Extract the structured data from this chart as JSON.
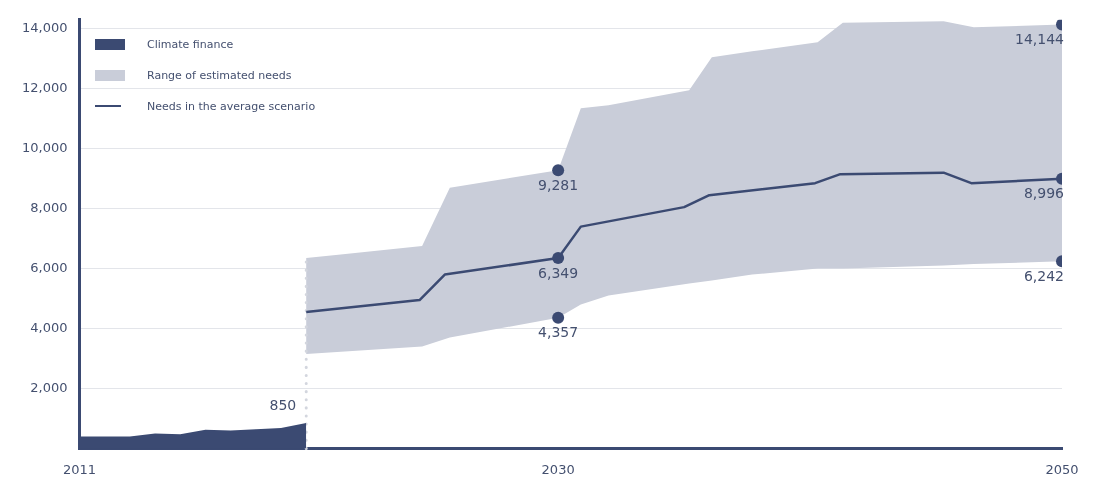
{
  "chart_data": {
    "type": "area",
    "xlim": [
      2011,
      2050
    ],
    "xticks": [
      2011,
      2030,
      2050
    ],
    "ylim": [
      0,
      14300
    ],
    "yticks": [
      {
        "value": 2000,
        "label": "2,000"
      },
      {
        "value": 4000,
        "label": "4,000"
      },
      {
        "value": 6000,
        "label": "6,000"
      },
      {
        "value": 8000,
        "label": "8,000"
      },
      {
        "value": 10000,
        "label": "10,000"
      },
      {
        "value": 12000,
        "label": "12,000"
      },
      {
        "value": 14000,
        "label": "14,000"
      }
    ],
    "grid": "y",
    "legend": "top left",
    "series": [
      {
        "name": "Climate finance",
        "color": "#3b4a72",
        "x": [
          2011,
          2012,
          2013,
          2014,
          2015,
          2016,
          2017,
          2018,
          2019,
          2020
        ],
        "values": [
          400,
          400,
          400,
          500,
          470,
          620,
          600,
          640,
          680,
          850
        ]
      },
      {
        "name": "Range of estimated needs",
        "color": "#c9cdd9",
        "values": [
          null,
          null,
          null,
          null,
          null,
          null,
          null,
          null,
          null,
          null,
          null,
          null,
          null,
          null
        ],
        "x": [
          2020,
          2024.6,
          2025.7,
          2030,
          2030.9,
          2032,
          2035.2,
          2036.1,
          2037.7,
          2040.3,
          2041.3,
          2045.3,
          2046.5,
          2050
        ],
        "lower": [
          3150,
          3400,
          3700,
          4357,
          4800,
          5100,
          5500,
          5600,
          5800,
          6000,
          6000,
          6100,
          6150,
          6242
        ],
        "upper": [
          6350,
          6750,
          8700,
          9281,
          11350,
          11450,
          11950,
          13050,
          13250,
          13550,
          14200,
          14250,
          14050,
          14144
        ]
      },
      {
        "name": "Needs in the average scenario",
        "type": "line",
        "color": "#3b4a72",
        "x": [
          2020,
          2024.5,
          2025.5,
          2030,
          2030.9,
          2035,
          2036,
          2040.2,
          2041.2,
          2045.3,
          2046.4,
          2050
        ],
        "values": [
          4550,
          4950,
          5800,
          6349,
          7400,
          8050,
          8450,
          8850,
          9150,
          9200,
          8850,
          8996
        ]
      },
      {
        "type": "scatter",
        "color": "#3b4a72",
        "marker": "circle",
        "x": [
          2030,
          2030,
          2030,
          2050,
          2050,
          2050
        ],
        "values": [
          9281,
          6349,
          4357,
          14144,
          8996,
          6242
        ]
      }
    ],
    "ref_lines": [
      {
        "axis": "x",
        "value": 2020,
        "color": "#d3d6de",
        "line_style": "dotted"
      }
    ],
    "annotations": [
      {
        "text": "850",
        "x": 2020,
        "y": 850
      },
      {
        "text": "9,281",
        "x": 2030,
        "y": 9281
      },
      {
        "text": "6,349",
        "x": 2030,
        "y": 6349
      },
      {
        "text": "4,357",
        "x": 2030,
        "y": 4357
      },
      {
        "text": "14,144",
        "x": 2050,
        "y": 14144
      },
      {
        "text": "8,996",
        "x": 2050,
        "y": 8996
      },
      {
        "text": "6,242",
        "x": 2050,
        "y": 6242
      }
    ]
  }
}
